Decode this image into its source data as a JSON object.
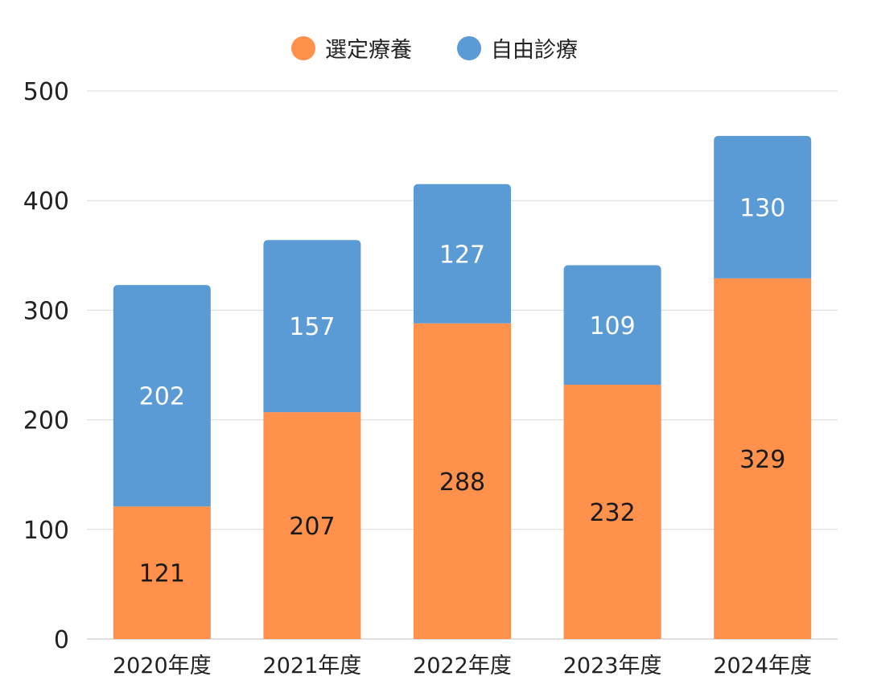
{
  "chart_data": {
    "type": "bar",
    "stacked": true,
    "categories": [
      "2020年度",
      "2021年度",
      "2022年度",
      "2023年度",
      "2024年度"
    ],
    "series": [
      {
        "name": "選定療養",
        "values": [
          121,
          207,
          288,
          232,
          329
        ],
        "color": "#ff914d",
        "label_color": "#1a1a1a"
      },
      {
        "name": "自由診療",
        "values": [
          202,
          157,
          127,
          109,
          130
        ],
        "color": "#5b9bd5",
        "label_color": "#ffffff"
      }
    ],
    "title": "",
    "xlabel": "",
    "ylabel": "",
    "ylim": [
      0,
      500
    ],
    "yticks": [
      0,
      100,
      200,
      300,
      400,
      500
    ],
    "grid": true,
    "legend_position": "top-center"
  }
}
